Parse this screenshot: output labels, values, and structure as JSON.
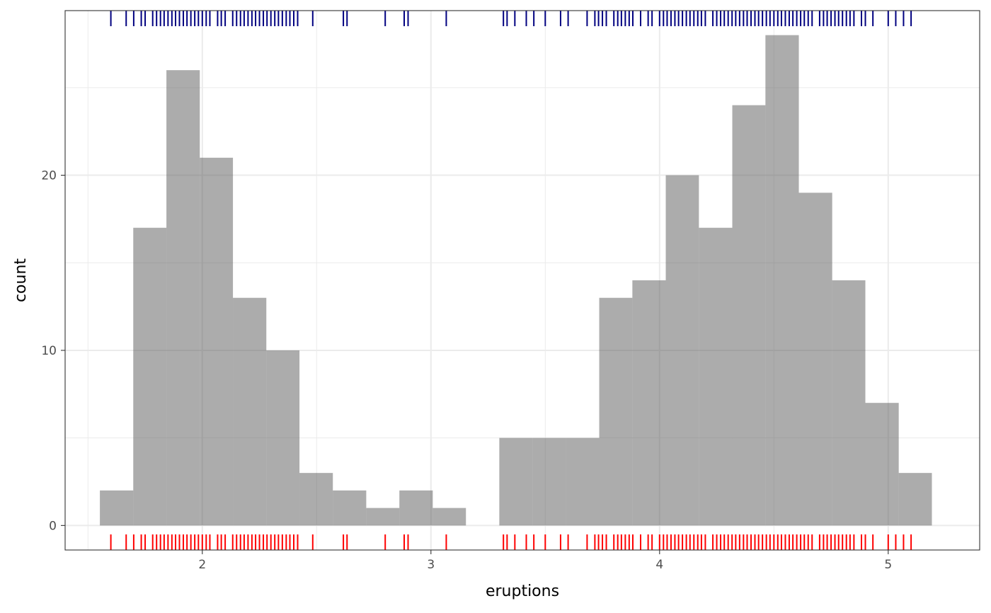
{
  "chart_data": {
    "type": "histogram",
    "xlabel": "eruptions",
    "ylabel": "count",
    "xlim": [
      1.4,
      5.4
    ],
    "ylim": [
      -1.4,
      29.4
    ],
    "x_ticks": [
      2,
      3,
      4,
      5
    ],
    "x_tick_labels": [
      "2",
      "3",
      "4",
      "5"
    ],
    "y_ticks": [
      0,
      10,
      20
    ],
    "y_tick_labels": [
      "0",
      "10",
      "20"
    ],
    "grid": true,
    "bin_width": 0.1455,
    "bins": [
      {
        "x0": 1.552,
        "x1": 1.698,
        "count": 2
      },
      {
        "x0": 1.698,
        "x1": 1.843,
        "count": 17
      },
      {
        "x0": 1.843,
        "x1": 1.989,
        "count": 26
      },
      {
        "x0": 1.989,
        "x1": 2.134,
        "count": 21
      },
      {
        "x0": 2.134,
        "x1": 2.28,
        "count": 13
      },
      {
        "x0": 2.28,
        "x1": 2.425,
        "count": 10
      },
      {
        "x0": 2.425,
        "x1": 2.571,
        "count": 3
      },
      {
        "x0": 2.571,
        "x1": 2.717,
        "count": 2
      },
      {
        "x0": 2.717,
        "x1": 2.862,
        "count": 1
      },
      {
        "x0": 2.862,
        "x1": 3.008,
        "count": 2
      },
      {
        "x0": 3.008,
        "x1": 3.153,
        "count": 1
      },
      {
        "x0": 3.153,
        "x1": 3.299,
        "count": 0
      },
      {
        "x0": 3.299,
        "x1": 3.444,
        "count": 5
      },
      {
        "x0": 3.444,
        "x1": 3.59,
        "count": 5
      },
      {
        "x0": 3.59,
        "x1": 3.736,
        "count": 5
      },
      {
        "x0": 3.736,
        "x1": 3.881,
        "count": 13
      },
      {
        "x0": 3.881,
        "x1": 4.027,
        "count": 14
      },
      {
        "x0": 4.027,
        "x1": 4.172,
        "count": 20
      },
      {
        "x0": 4.172,
        "x1": 4.318,
        "count": 17
      },
      {
        "x0": 4.318,
        "x1": 4.463,
        "count": 24
      },
      {
        "x0": 4.463,
        "x1": 4.609,
        "count": 28
      },
      {
        "x0": 4.609,
        "x1": 4.755,
        "count": 19
      },
      {
        "x0": 4.755,
        "x1": 4.9,
        "count": 14
      },
      {
        "x0": 4.9,
        "x1": 5.046,
        "count": 7
      },
      {
        "x0": 5.046,
        "x1": 5.191,
        "count": 3
      }
    ],
    "bar_color": "#595959",
    "bar_opacity": 0.5,
    "rug_top_color": "#000080",
    "rug_bottom_color": "#ff0000",
    "rug_values": [
      1.6,
      1.667,
      1.7,
      1.733,
      1.75,
      1.783,
      1.8,
      1.817,
      1.833,
      1.85,
      1.867,
      1.883,
      1.9,
      1.917,
      1.933,
      1.95,
      1.967,
      1.983,
      2.0,
      2.017,
      2.033,
      2.067,
      2.083,
      2.1,
      2.133,
      2.15,
      2.167,
      2.183,
      2.2,
      2.217,
      2.233,
      2.25,
      2.267,
      2.283,
      2.3,
      2.317,
      2.333,
      2.35,
      2.367,
      2.383,
      2.4,
      2.417,
      2.483,
      2.617,
      2.633,
      2.8,
      2.883,
      2.9,
      3.067,
      3.317,
      3.333,
      3.367,
      3.417,
      3.45,
      3.5,
      3.567,
      3.6,
      3.683,
      3.717,
      3.733,
      3.75,
      3.767,
      3.8,
      3.817,
      3.833,
      3.85,
      3.867,
      3.883,
      3.917,
      3.95,
      3.967,
      4.0,
      4.017,
      4.033,
      4.05,
      4.067,
      4.083,
      4.1,
      4.117,
      4.133,
      4.15,
      4.167,
      4.183,
      4.2,
      4.233,
      4.25,
      4.267,
      4.283,
      4.3,
      4.317,
      4.333,
      4.35,
      4.367,
      4.383,
      4.4,
      4.417,
      4.433,
      4.45,
      4.467,
      4.483,
      4.5,
      4.517,
      4.533,
      4.55,
      4.567,
      4.583,
      4.6,
      4.617,
      4.633,
      4.65,
      4.667,
      4.7,
      4.717,
      4.733,
      4.75,
      4.767,
      4.783,
      4.8,
      4.817,
      4.833,
      4.85,
      4.883,
      4.9,
      4.933,
      5.0,
      5.033,
      5.067,
      5.1
    ]
  }
}
